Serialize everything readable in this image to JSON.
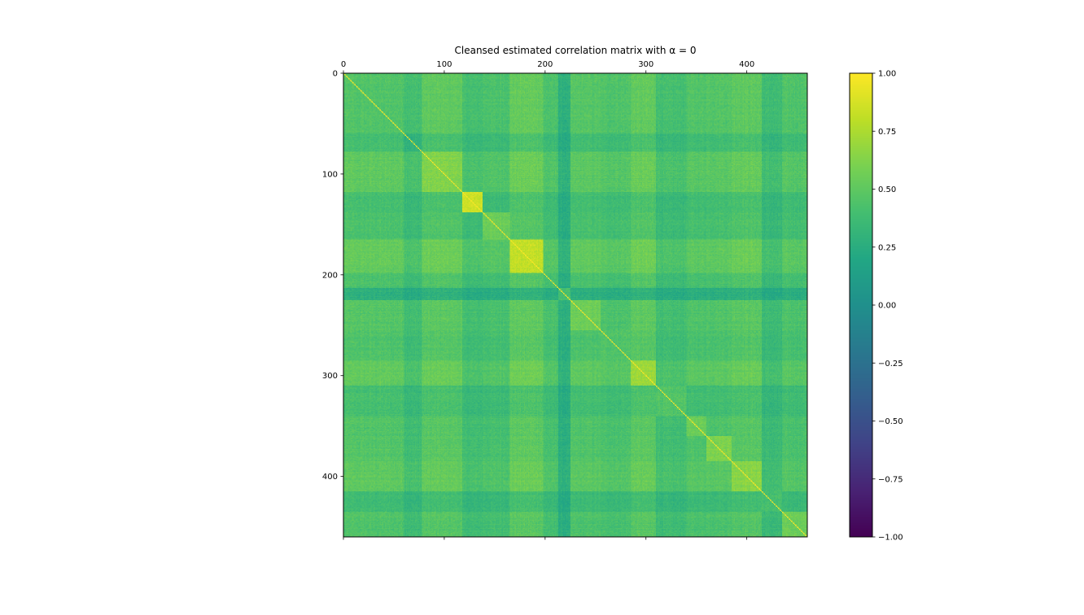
{
  "chart_data": {
    "type": "heatmap",
    "title": "Cleansed estimated correlation matrix with α = 0",
    "matrix_size": 460,
    "xlim": [
      0,
      460
    ],
    "ylim": [
      0,
      460
    ],
    "x_ticks": [
      0,
      100,
      200,
      300,
      400
    ],
    "y_ticks": [
      0,
      100,
      200,
      300,
      400
    ],
    "x_tick_labels": [
      "0",
      "100",
      "200",
      "300",
      "400"
    ],
    "y_tick_labels": [
      "0",
      "100",
      "200",
      "300",
      "400"
    ],
    "x_tick_position": "top",
    "colormap": "viridis",
    "vmin": -1.0,
    "vmax": 1.0,
    "colorbar_ticks": [
      1.0,
      0.75,
      0.5,
      0.25,
      0.0,
      -0.25,
      -0.5,
      -0.75,
      -1.0
    ],
    "colorbar_tick_labels": [
      "1.00",
      "0.75",
      "0.50",
      "0.25",
      "0.00",
      "−0.25",
      "−0.50",
      "−0.75",
      "−1.00"
    ],
    "diagonal_value": 1.0,
    "blocks": [
      {
        "start": 0,
        "end": 60,
        "within": 0.45,
        "profile": 0.45
      },
      {
        "start": 60,
        "end": 78,
        "within": 0.3,
        "profile": 0.3
      },
      {
        "start": 78,
        "end": 118,
        "within": 0.62,
        "profile": 0.5
      },
      {
        "start": 118,
        "end": 138,
        "within": 0.85,
        "profile": 0.3
      },
      {
        "start": 138,
        "end": 165,
        "within": 0.55,
        "profile": 0.35
      },
      {
        "start": 165,
        "end": 198,
        "within": 0.82,
        "profile": 0.55
      },
      {
        "start": 198,
        "end": 213,
        "within": 0.4,
        "profile": 0.35
      },
      {
        "start": 213,
        "end": 225,
        "within": 0.4,
        "profile": 0.12
      },
      {
        "start": 225,
        "end": 255,
        "within": 0.55,
        "profile": 0.42
      },
      {
        "start": 255,
        "end": 285,
        "within": 0.45,
        "profile": 0.38
      },
      {
        "start": 285,
        "end": 310,
        "within": 0.7,
        "profile": 0.52
      },
      {
        "start": 310,
        "end": 340,
        "within": 0.45,
        "profile": 0.3
      },
      {
        "start": 340,
        "end": 360,
        "within": 0.55,
        "profile": 0.4
      },
      {
        "start": 360,
        "end": 385,
        "within": 0.62,
        "profile": 0.42
      },
      {
        "start": 385,
        "end": 415,
        "within": 0.65,
        "profile": 0.5
      },
      {
        "start": 415,
        "end": 435,
        "within": 0.4,
        "profile": 0.25
      },
      {
        "start": 435,
        "end": 460,
        "within": 0.55,
        "profile": 0.38
      }
    ]
  }
}
